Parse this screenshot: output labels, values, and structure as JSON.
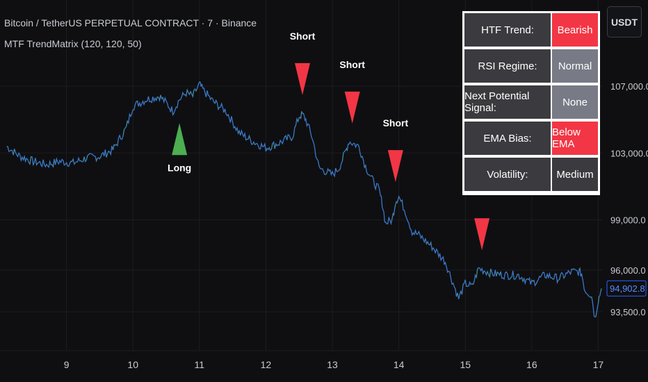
{
  "header": {
    "symbol": "Bitcoin / TetherUS PERPETUAL CONTRACT · 7 · Binance",
    "indicator": "MTF TrendMatrix (120, 120, 50)"
  },
  "currency_button": {
    "label": "USDT"
  },
  "panel": {
    "rows": [
      {
        "label": "HTF Trend:",
        "value": "Bearish",
        "color": "#f23645"
      },
      {
        "label": "RSI Regime:",
        "value": "Normal",
        "color": "#787b86"
      },
      {
        "label": "Next Potential Signal:",
        "value": "None",
        "color": "#787b86"
      },
      {
        "label": "EMA Bias:",
        "value": "Below EMA",
        "color": "#f23645"
      },
      {
        "label": "Volatility:",
        "value": "Medium",
        "color": "#3b3b3f"
      }
    ]
  },
  "chart_data": {
    "type": "line",
    "x_ticks": [
      "9",
      "10",
      "11",
      "12",
      "13",
      "14",
      "15",
      "16",
      "17"
    ],
    "y_ticks": [
      {
        "value": 107000,
        "label": "107,000.0"
      },
      {
        "value": 103000,
        "label": "103,000.0"
      },
      {
        "value": 99000,
        "label": "99,000.0"
      },
      {
        "value": 96000,
        "label": "96,000.0"
      },
      {
        "value": 93500,
        "label": "93,500.0"
      }
    ],
    "last_price": {
      "value": 94902.8,
      "label": "94,902.8"
    },
    "series": [
      {
        "x": [
          8.1,
          8.3,
          8.5,
          8.7,
          8.9,
          9.1,
          9.3,
          9.5,
          9.7,
          9.9,
          10.0,
          10.2,
          10.4,
          10.5,
          10.6,
          10.7,
          10.8,
          10.9,
          11.0,
          11.05,
          11.2,
          11.4,
          11.6,
          11.8,
          12.0,
          12.2,
          12.4,
          12.5,
          12.55,
          12.6,
          12.7,
          12.8,
          12.9,
          13.0,
          13.1,
          13.2,
          13.25,
          13.4,
          13.5,
          13.6,
          13.7,
          13.75,
          13.8,
          13.9,
          13.95,
          14.0,
          14.1,
          14.2,
          14.3,
          14.5,
          14.7,
          14.8,
          14.9,
          15.0,
          15.1,
          15.2,
          15.4,
          15.6,
          15.8,
          16.0,
          16.2,
          16.4,
          16.6,
          16.7,
          16.75,
          16.8,
          16.9,
          16.95,
          17.0,
          17.05
        ],
        "y": [
          103400,
          102800,
          102500,
          102300,
          102500,
          102400,
          102700,
          102800,
          103200,
          104500,
          105800,
          106200,
          106400,
          106000,
          105500,
          106200,
          106600,
          106400,
          107100,
          106800,
          106100,
          105500,
          104200,
          103700,
          103300,
          103600,
          104000,
          105200,
          105300,
          105000,
          103900,
          102100,
          101900,
          101700,
          102100,
          103100,
          103700,
          103400,
          102200,
          101400,
          100800,
          100000,
          98800,
          99000,
          100100,
          100400,
          99500,
          98300,
          98100,
          97400,
          96500,
          95400,
          94300,
          95200,
          95000,
          96100,
          95800,
          95700,
          95700,
          95200,
          95700,
          95500,
          95900,
          95900,
          95800,
          94800,
          94500,
          93100,
          94200,
          94900
        ]
      }
    ],
    "signals": [
      {
        "type": "long",
        "x": 10.7,
        "label": "Long",
        "color": "#4caf50"
      },
      {
        "type": "short",
        "x": 12.55,
        "label": "Short",
        "color": "#f23645"
      },
      {
        "type": "short",
        "x": 13.3,
        "label": "Short",
        "color": "#f23645"
      },
      {
        "type": "short",
        "x": 13.95,
        "label": "Short",
        "color": "#f23645"
      },
      {
        "type": "short",
        "x": 15.25,
        "label": "",
        "color": "#f23645"
      }
    ],
    "line_color": "#3a78c9",
    "grid": true
  }
}
